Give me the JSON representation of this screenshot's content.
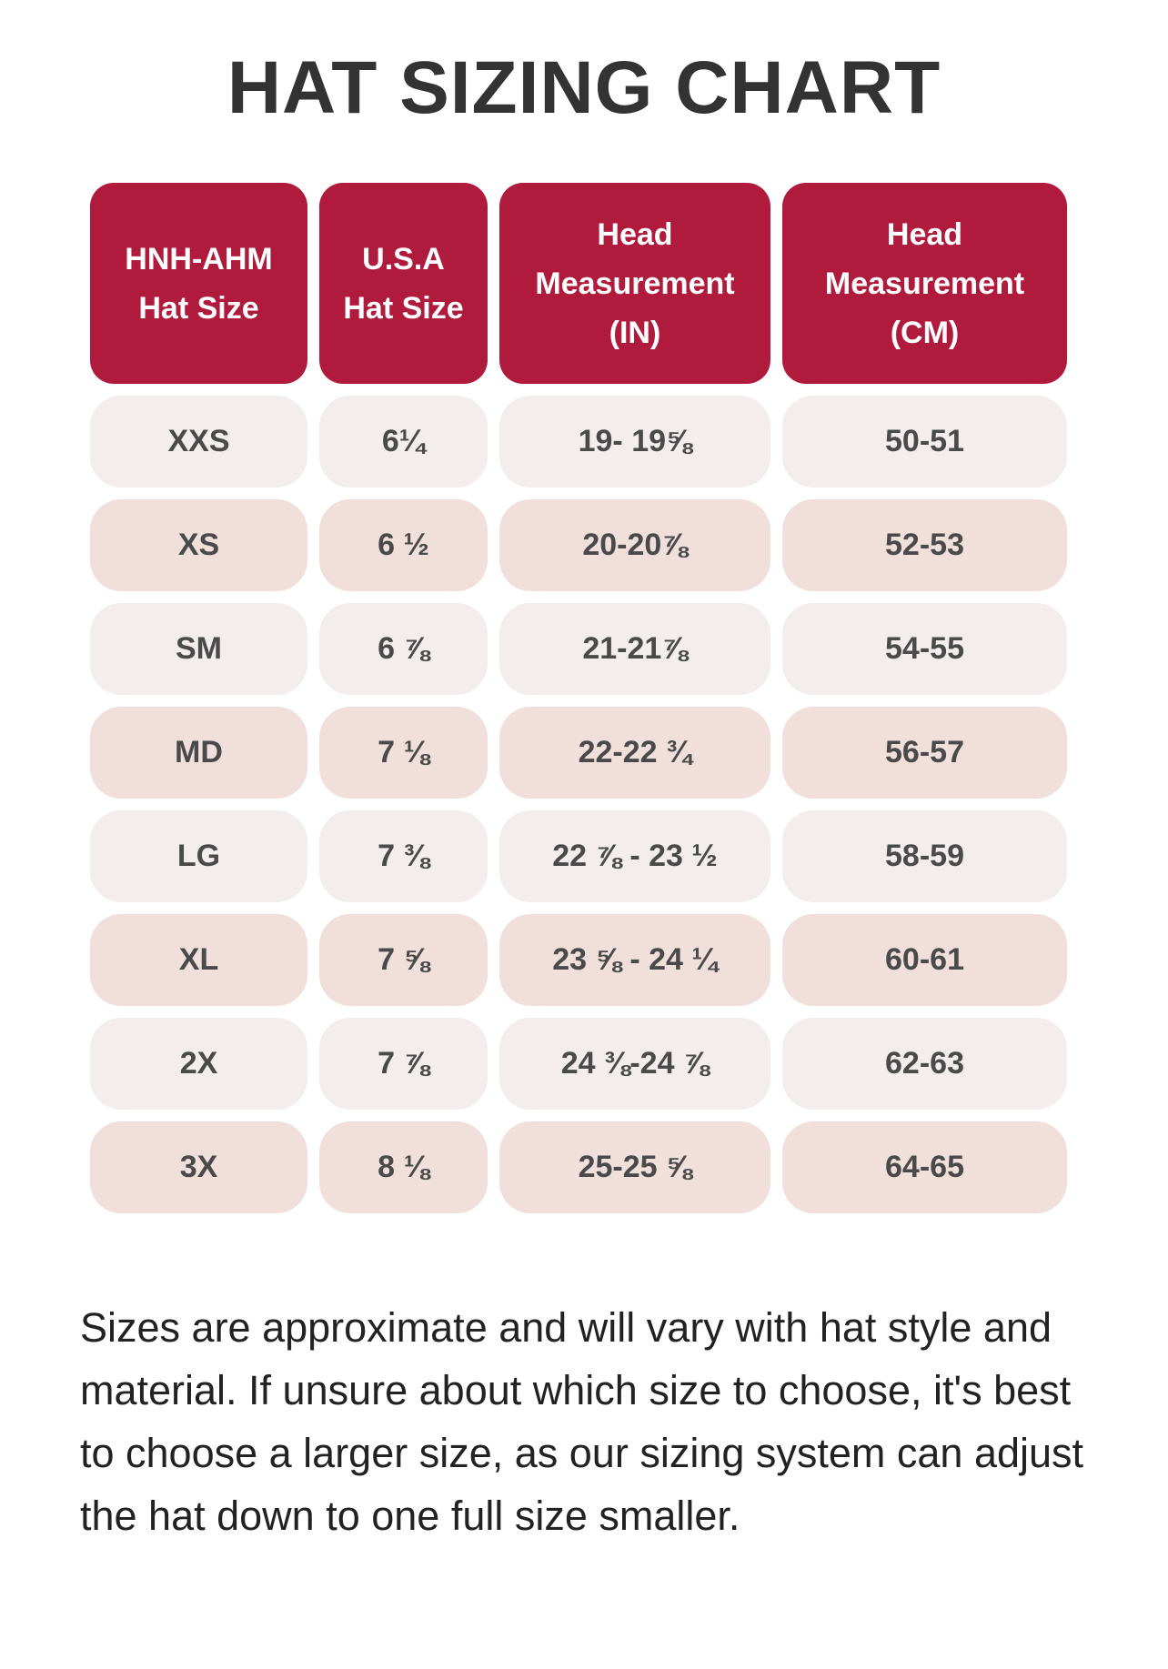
{
  "title": "HAT SIZING CHART",
  "table": {
    "headers": [
      "HNH-AHM\nHat Size",
      "U.S.A\nHat Size",
      "Head\nMeasurement\n(IN)",
      "Head\nMeasurement\n(CM)"
    ],
    "rows": [
      [
        "XXS",
        "6¼",
        "19- 19⅝",
        "50-51"
      ],
      [
        "XS",
        "6 ½",
        "20-20⅞",
        "52-53"
      ],
      [
        "SM",
        "6 ⅞",
        "21-21⅞",
        "54-55"
      ],
      [
        "MD",
        "7 ⅛",
        "22-22 ¾",
        "56-57"
      ],
      [
        "LG",
        "7 ⅜",
        "22 ⅞ - 23 ½",
        "58-59"
      ],
      [
        "XL",
        "7 ⅝",
        "23 ⅝ - 24 ¼",
        "60-61"
      ],
      [
        "2X",
        "7 ⅞",
        "24 ⅜-24 ⅞",
        "62-63"
      ],
      [
        "3X",
        "8 ⅛",
        "25-25 ⅝",
        "64-65"
      ]
    ]
  },
  "note": "Sizes are approximate and will vary with hat style and material. If unsure about which size to choose, it's best to choose a larger size, as our sizing system can adjust the hat down to one full size smaller."
}
